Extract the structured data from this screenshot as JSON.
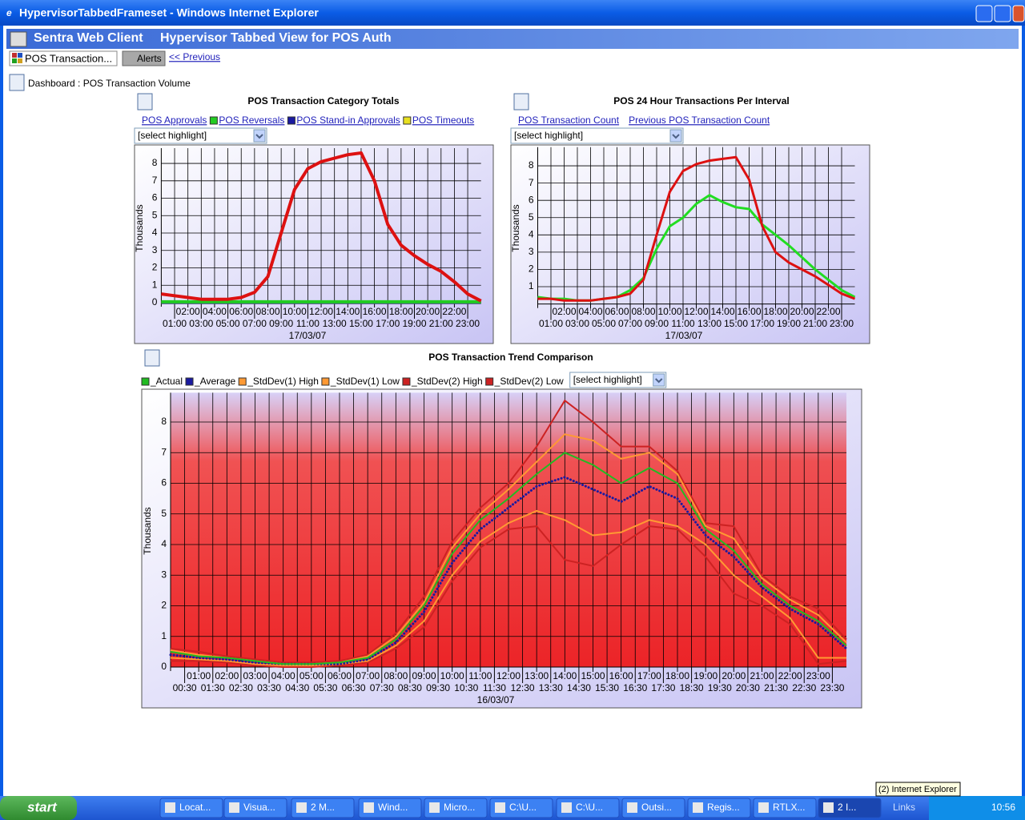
{
  "window": {
    "title": "HypervisorTabbedFrameset - Windows Internet Explorer"
  },
  "app": {
    "name": "Sentra Web Client",
    "view": "Hypervisor Tabbed View for POS Auth"
  },
  "tabs": [
    "POS Transaction...",
    "Alerts"
  ],
  "previous": "<< Previous",
  "breadcrumb": "Dashboard : POS Transaction Volume",
  "chart_data": [
    {
      "type": "line",
      "title": "POS Transaction Category Totals",
      "select": "[select highlight]",
      "y_label": "Thousands",
      "x_label": "17/03/07",
      "grid": true,
      "x": [
        0,
        1,
        2,
        3,
        4,
        5,
        6,
        7,
        8,
        9,
        10,
        11,
        12,
        13,
        14,
        15,
        16,
        17,
        18,
        19,
        20,
        21,
        22,
        23,
        24
      ],
      "xlim": [
        0,
        24
      ],
      "ylim": [
        0,
        8.6
      ],
      "yticks": [
        0,
        1,
        2,
        3,
        4,
        5,
        6,
        7,
        8
      ],
      "xticks": [
        {
          "value": 1,
          "label": "01:00"
        },
        {
          "value": 2,
          "label": "02:00"
        },
        {
          "value": 3,
          "label": "03:00"
        },
        {
          "value": 4,
          "label": "04:00"
        },
        {
          "value": 5,
          "label": "05:00"
        },
        {
          "value": 6,
          "label": "06:00"
        },
        {
          "value": 7,
          "label": "07:00"
        },
        {
          "value": 8,
          "label": "08:00"
        },
        {
          "value": 9,
          "label": "09:00"
        },
        {
          "value": 10,
          "label": "10:00"
        },
        {
          "value": 11,
          "label": "11:00"
        },
        {
          "value": 12,
          "label": "12:00"
        },
        {
          "value": 13,
          "label": "13:00"
        },
        {
          "value": 14,
          "label": "14:00"
        },
        {
          "value": 15,
          "label": "15:00"
        },
        {
          "value": 16,
          "label": "16:00"
        },
        {
          "value": 17,
          "label": "17:00"
        },
        {
          "value": 18,
          "label": "18:00"
        },
        {
          "value": 19,
          "label": "19:00"
        },
        {
          "value": 20,
          "label": "20:00"
        },
        {
          "value": 21,
          "label": "21:00"
        },
        {
          "value": 22,
          "label": "22:00"
        },
        {
          "value": 23,
          "label": "23:00"
        }
      ],
      "series": [
        {
          "name": "POS Approvals",
          "color": "#dd1111",
          "values": [
            0.5,
            0.4,
            0.3,
            0.2,
            0.2,
            0.2,
            0.3,
            0.6,
            1.5,
            4.0,
            6.5,
            7.7,
            8.1,
            8.3,
            8.5,
            8.6,
            7.0,
            4.5,
            3.3,
            2.7,
            2.2,
            1.8,
            1.2,
            0.5,
            0.1
          ]
        },
        {
          "name": "POS Reversals",
          "color": "#22cc22",
          "values": [
            0.05,
            0.05,
            0.05,
            0.05,
            0.05,
            0.05,
            0.05,
            0.05,
            0.05,
            0.05,
            0.05,
            0.05,
            0.05,
            0.05,
            0.05,
            0.05,
            0.05,
            0.05,
            0.05,
            0.05,
            0.05,
            0.05,
            0.05,
            0.05,
            0.05
          ]
        },
        {
          "name": "POS Stand-in Approvals",
          "color": "#1a1aa0",
          "values": [
            0.02,
            0.02,
            0.02,
            0.02,
            0.02,
            0.02,
            0.02,
            0.02,
            0.02,
            0.02,
            0.02,
            0.02,
            0.02,
            0.02,
            0.02,
            0.02,
            0.02,
            0.02,
            0.02,
            0.02,
            0.02,
            0.02,
            0.02,
            0.02,
            0.02
          ]
        },
        {
          "name": "POS Timeouts",
          "color": "#e8e020",
          "values": [
            0.01,
            0.01,
            0.01,
            0.01,
            0.01,
            0.01,
            0.01,
            0.01,
            0.01,
            0.01,
            0.01,
            0.01,
            0.01,
            0.01,
            0.01,
            0.01,
            0.01,
            0.01,
            0.01,
            0.01,
            0.01,
            0.01,
            0.01,
            0.01,
            0.01
          ]
        }
      ]
    },
    {
      "type": "line",
      "title": "POS 24 Hour Transactions Per Interval",
      "select": "[select highlight]",
      "y_label": "Thousands",
      "x_label": "17/03/07",
      "grid": true,
      "x": [
        0,
        1,
        2,
        3,
        4,
        5,
        6,
        7,
        8,
        9,
        10,
        11,
        12,
        13,
        14,
        15,
        16,
        17,
        18,
        19,
        20,
        21,
        22,
        23,
        24
      ],
      "xlim": [
        0,
        24
      ],
      "ylim": [
        0,
        8.8
      ],
      "yticks": [
        1,
        2,
        3,
        4,
        5,
        6,
        7,
        8
      ],
      "xticks": [
        {
          "value": 1,
          "label": "01:00"
        },
        {
          "value": 2,
          "label": "02:00"
        },
        {
          "value": 3,
          "label": "03:00"
        },
        {
          "value": 4,
          "label": "04:00"
        },
        {
          "value": 5,
          "label": "05:00"
        },
        {
          "value": 6,
          "label": "06:00"
        },
        {
          "value": 7,
          "label": "07:00"
        },
        {
          "value": 8,
          "label": "08:00"
        },
        {
          "value": 9,
          "label": "09:00"
        },
        {
          "value": 10,
          "label": "10:00"
        },
        {
          "value": 11,
          "label": "11:00"
        },
        {
          "value": 12,
          "label": "12:00"
        },
        {
          "value": 13,
          "label": "13:00"
        },
        {
          "value": 14,
          "label": "14:00"
        },
        {
          "value": 15,
          "label": "15:00"
        },
        {
          "value": 16,
          "label": "16:00"
        },
        {
          "value": 17,
          "label": "17:00"
        },
        {
          "value": 18,
          "label": "18:00"
        },
        {
          "value": 19,
          "label": "19:00"
        },
        {
          "value": 20,
          "label": "20:00"
        },
        {
          "value": 21,
          "label": "21:00"
        },
        {
          "value": 22,
          "label": "22:00"
        },
        {
          "value": 23,
          "label": "23:00"
        }
      ],
      "series": [
        {
          "name": "POS Transaction Count",
          "color": "#dd1111",
          "values": [
            0.3,
            0.3,
            0.2,
            0.2,
            0.2,
            0.3,
            0.4,
            0.6,
            1.4,
            4.0,
            6.5,
            7.7,
            8.1,
            8.3,
            8.4,
            8.5,
            7.2,
            4.5,
            3.0,
            2.4,
            2.0,
            1.6,
            1.1,
            0.6,
            0.3
          ]
        },
        {
          "name": "Previous POS Transaction Count",
          "color": "#22dd22",
          "values": [
            0.4,
            0.3,
            0.3,
            0.2,
            0.2,
            0.3,
            0.4,
            0.8,
            1.5,
            3.2,
            4.5,
            5.0,
            5.8,
            6.3,
            5.9,
            5.6,
            5.5,
            4.6,
            4.0,
            3.4,
            2.7,
            2.0,
            1.4,
            0.8,
            0.4
          ]
        }
      ]
    },
    {
      "type": "line",
      "title": "POS Transaction Trend Comparison",
      "select": "[select highlight]",
      "y_label": "Thousands",
      "x_label": "16/03/07",
      "grid": true,
      "x": [
        0,
        1,
        2,
        3,
        4,
        5,
        6,
        7,
        8,
        9,
        10,
        11,
        12,
        13,
        14,
        15,
        16,
        17,
        18,
        19,
        20,
        21,
        22,
        23,
        24
      ],
      "xlim": [
        0,
        24
      ],
      "ylim": [
        0,
        8.8
      ],
      "yticks": [
        0,
        1,
        2,
        3,
        4,
        5,
        6,
        7,
        8
      ],
      "xticks": [
        {
          "value": 0.5,
          "label": "00:30"
        },
        {
          "value": 1,
          "label": "01:00"
        },
        {
          "value": 1.5,
          "label": "01:30"
        },
        {
          "value": 2,
          "label": "02:00"
        },
        {
          "value": 2.5,
          "label": "02:30"
        },
        {
          "value": 3,
          "label": "03:00"
        },
        {
          "value": 3.5,
          "label": "03:30"
        },
        {
          "value": 4,
          "label": "04:00"
        },
        {
          "value": 4.5,
          "label": "04:30"
        },
        {
          "value": 5,
          "label": "05:00"
        },
        {
          "value": 5.5,
          "label": "05:30"
        },
        {
          "value": 6,
          "label": "06:00"
        },
        {
          "value": 6.5,
          "label": "06:30"
        },
        {
          "value": 7,
          "label": "07:00"
        },
        {
          "value": 7.5,
          "label": "07:30"
        },
        {
          "value": 8,
          "label": "08:00"
        },
        {
          "value": 8.5,
          "label": "08:30"
        },
        {
          "value": 9,
          "label": "09:00"
        },
        {
          "value": 9.5,
          "label": "09:30"
        },
        {
          "value": 10,
          "label": "10:00"
        },
        {
          "value": 10.5,
          "label": "10:30"
        },
        {
          "value": 11,
          "label": "11:00"
        },
        {
          "value": 11.5,
          "label": "11:30"
        },
        {
          "value": 12,
          "label": "12:00"
        },
        {
          "value": 12.5,
          "label": "12:30"
        },
        {
          "value": 13,
          "label": "13:00"
        },
        {
          "value": 13.5,
          "label": "13:30"
        },
        {
          "value": 14,
          "label": "14:00"
        },
        {
          "value": 14.5,
          "label": "14:30"
        },
        {
          "value": 15,
          "label": "15:00"
        },
        {
          "value": 15.5,
          "label": "15:30"
        },
        {
          "value": 16,
          "label": "16:00"
        },
        {
          "value": 16.5,
          "label": "16:30"
        },
        {
          "value": 17,
          "label": "17:00"
        },
        {
          "value": 17.5,
          "label": "17:30"
        },
        {
          "value": 18,
          "label": "18:00"
        },
        {
          "value": 18.5,
          "label": "18:30"
        },
        {
          "value": 19,
          "label": "19:00"
        },
        {
          "value": 19.5,
          "label": "19:30"
        },
        {
          "value": 20,
          "label": "20:00"
        },
        {
          "value": 20.5,
          "label": "20:30"
        },
        {
          "value": 21,
          "label": "21:00"
        },
        {
          "value": 21.5,
          "label": "21:30"
        },
        {
          "value": 22,
          "label": "22:00"
        },
        {
          "value": 22.5,
          "label": "22:30"
        },
        {
          "value": 23,
          "label": "23:00"
        },
        {
          "value": 23.5,
          "label": "23:30"
        }
      ],
      "series": [
        {
          "name": "_Actual",
          "color": "#22bb22",
          "values": [
            0.5,
            0.35,
            0.3,
            0.2,
            0.1,
            0.1,
            0.15,
            0.3,
            0.9,
            2.0,
            3.7,
            4.8,
            5.5,
            6.3,
            7.0,
            6.6,
            6.0,
            6.5,
            6.0,
            4.5,
            3.8,
            2.7,
            2.0,
            1.5,
            0.7
          ]
        },
        {
          "name": "_Average",
          "color": "#1a1aa0",
          "line_style": "dotted",
          "values": [
            0.4,
            0.3,
            0.25,
            0.15,
            0.1,
            0.1,
            0.1,
            0.25,
            0.8,
            1.8,
            3.4,
            4.5,
            5.2,
            5.9,
            6.2,
            5.8,
            5.4,
            5.9,
            5.5,
            4.3,
            3.6,
            2.6,
            1.9,
            1.4,
            0.6
          ]
        },
        {
          "name": "_StdDev(1) High",
          "color": "#ff9933",
          "values": [
            0.55,
            0.4,
            0.3,
            0.2,
            0.1,
            0.1,
            0.15,
            0.35,
            1.0,
            2.1,
            3.9,
            5.0,
            5.8,
            6.7,
            7.6,
            7.4,
            6.8,
            7.0,
            6.3,
            4.6,
            4.2,
            2.9,
            2.2,
            1.7,
            0.8
          ]
        },
        {
          "name": "_StdDev(1) Low",
          "color": "#ff9933",
          "values": [
            0.3,
            0.25,
            0.2,
            0.1,
            0.05,
            0.05,
            0.1,
            0.2,
            0.7,
            1.5,
            3.0,
            4.1,
            4.7,
            5.1,
            4.8,
            4.3,
            4.4,
            4.8,
            4.6,
            4.0,
            3.0,
            2.3,
            1.6,
            0.3,
            0.3
          ]
        },
        {
          "name": "_StdDev(2) High",
          "color": "#cc2222",
          "values": [
            0.6,
            0.5,
            0.35,
            0.25,
            0.15,
            0.15,
            0.2,
            0.4,
            1.1,
            2.3,
            4.1,
            5.2,
            6.0,
            7.2,
            8.7,
            8.0,
            7.2,
            7.2,
            6.4,
            4.7,
            4.6,
            3.0,
            2.3,
            1.9,
            0.9
          ]
        },
        {
          "name": "_StdDev(2) Low",
          "color": "#cc2222",
          "values": [
            0.2,
            0.2,
            0.15,
            0.05,
            0,
            0,
            0.05,
            0.15,
            0.6,
            1.3,
            2.8,
            3.9,
            4.5,
            4.6,
            3.5,
            3.3,
            4.0,
            4.6,
            4.5,
            3.6,
            2.4,
            2.0,
            1.4,
            0.1,
            0.2
          ]
        }
      ]
    }
  ],
  "taskbar": {
    "start": "start",
    "items": [
      "Locat...",
      "Visua...",
      "2 M...",
      "Wind...",
      "Micro...",
      "C:\\U...",
      "C:\\U...",
      "Outsi...",
      "Regis...",
      "RTLX...",
      "2 I..."
    ],
    "links": "Links",
    "clock": "10:56",
    "tooltip": "(2) Internet Explorer"
  }
}
